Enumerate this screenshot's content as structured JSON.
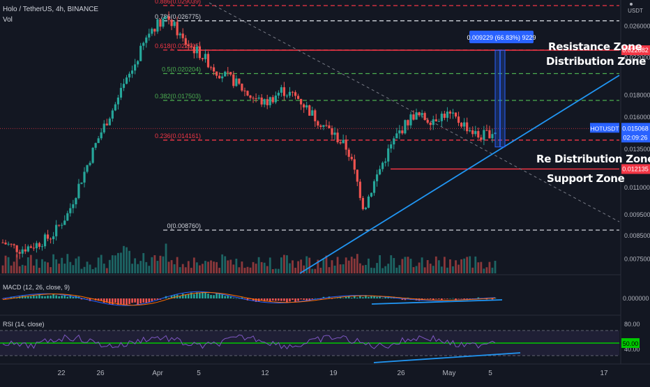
{
  "header": {
    "symbol_line": "Holo / TetherUS, 4h, BINANCE",
    "vol_label": "Vol",
    "macd_label": "MACD (12, 26, close, 9)",
    "rsi_label": "RSI (14, close)"
  },
  "price_axis": {
    "currency": "USDT",
    "ticks": [
      "0.026000",
      "0.022000",
      "0.018000",
      "0.016000",
      "0.013500",
      "0.011000",
      "0.009500",
      "0.008500",
      "0.007500"
    ]
  },
  "current_price": {
    "symbol": "HOTUSDT",
    "price": "0.015068",
    "countdown": "02:09:26",
    "color": "#2962ff"
  },
  "level_tags": [
    {
      "value": "0.022882",
      "color": "#f23645"
    },
    {
      "value": "0.012135",
      "color": "#f23645"
    }
  ],
  "fib_levels": [
    {
      "label": "0.886(0.029039)",
      "value": 0.029039,
      "color": "#f23645"
    },
    {
      "label": "0.786(0.026775)",
      "value": 0.026775,
      "color": "#d1d4dc"
    },
    {
      "label": "0.618(0.022905)",
      "value": 0.022905,
      "color": "#f23645"
    },
    {
      "label": "0.5(0.020204)",
      "value": 0.020204,
      "color": "#4caf50"
    },
    {
      "label": "0.382(0.017503)",
      "value": 0.017503,
      "color": "#4caf50"
    },
    {
      "label": "0.236(0.014161)",
      "value": 0.014161,
      "color": "#f23645"
    },
    {
      "label": "0(0.008760)",
      "value": 0.00876,
      "color": "#d1d4dc"
    }
  ],
  "measure_box": {
    "label": "0.009229 (66.83%) 9229",
    "color": "#2962ff"
  },
  "annotations": {
    "resistance": "Resistance Zone",
    "distribution": "Distribution Zone",
    "redistribution": "Re Distribution Zone",
    "support": "Support Zone"
  },
  "macd_axis": {
    "tick": "0.000000"
  },
  "rsi_axis": {
    "ticks": [
      "80.00",
      "40.00"
    ],
    "current": "50.00",
    "current_color": "#00c800"
  },
  "time_axis": {
    "labels": [
      "22",
      "26",
      "Apr",
      "5",
      "12",
      "19",
      "26",
      "May",
      "5",
      "17"
    ]
  },
  "chart_data": {
    "type": "candlestick",
    "title": "Holo / TetherUS, 4h, BINANCE",
    "close_path_approx": [
      0.0082,
      0.0079,
      0.0081,
      0.0085,
      0.0096,
      0.012,
      0.0148,
      0.0175,
      0.021,
      0.0255,
      0.0275,
      0.024,
      0.0225,
      0.0205,
      0.0195,
      0.018,
      0.0172,
      0.0185,
      0.0177,
      0.016,
      0.0148,
      0.0135,
      0.0098,
      0.0122,
      0.0145,
      0.0162,
      0.0158,
      0.0163,
      0.0155,
      0.0144,
      0.0149
    ],
    "colors": {
      "up": "#26a69a",
      "down": "#ef5350"
    }
  }
}
